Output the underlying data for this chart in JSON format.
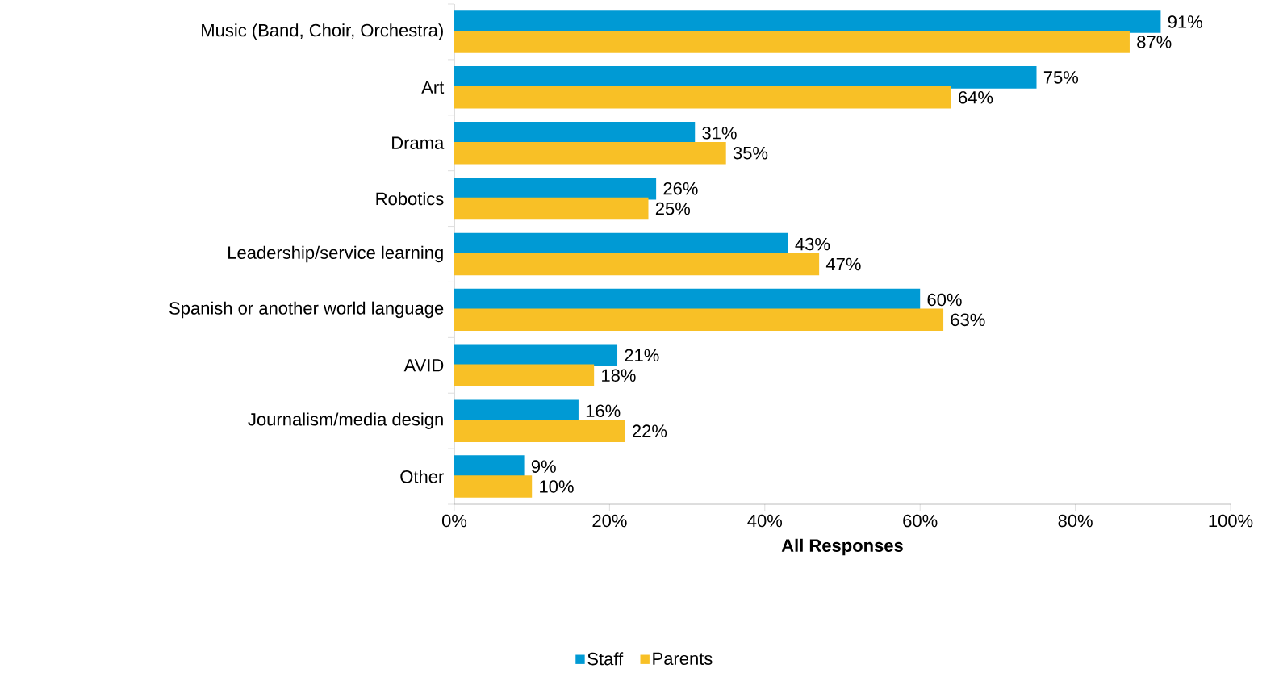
{
  "chart_data": {
    "type": "bar",
    "orientation": "horizontal",
    "xlabel": "All Responses",
    "categories": [
      "Music (Band, Choir, Orchestra)",
      "Art",
      "Drama",
      "Robotics",
      "Leadership/service learning",
      "Spanish or another world language",
      "AVID",
      "Journalism/media design",
      "Other"
    ],
    "series": [
      {
        "name": "Staff",
        "color": "#009ad4",
        "values": [
          91,
          75,
          31,
          26,
          43,
          60,
          21,
          16,
          9
        ],
        "value_labels": [
          "91%",
          "75%",
          "31%",
          "26%",
          "43%",
          "60%",
          "21%",
          "16%",
          "9%"
        ]
      },
      {
        "name": "Parents",
        "color": "#f8c026",
        "values": [
          87,
          64,
          35,
          25,
          47,
          63,
          18,
          22,
          10
        ],
        "value_labels": [
          "87%",
          "64%",
          "35%",
          "25%",
          "47%",
          "63%",
          "18%",
          "22%",
          "10%"
        ]
      }
    ],
    "xlim": [
      0,
      100
    ],
    "xticks": [
      {
        "value": 0,
        "label": "0%"
      },
      {
        "value": 20,
        "label": "20%"
      },
      {
        "value": 40,
        "label": "40%"
      },
      {
        "value": 60,
        "label": "60%"
      },
      {
        "value": 80,
        "label": "80%"
      },
      {
        "value": 100,
        "label": "100%"
      }
    ],
    "grid": false,
    "legend": "bottom"
  }
}
